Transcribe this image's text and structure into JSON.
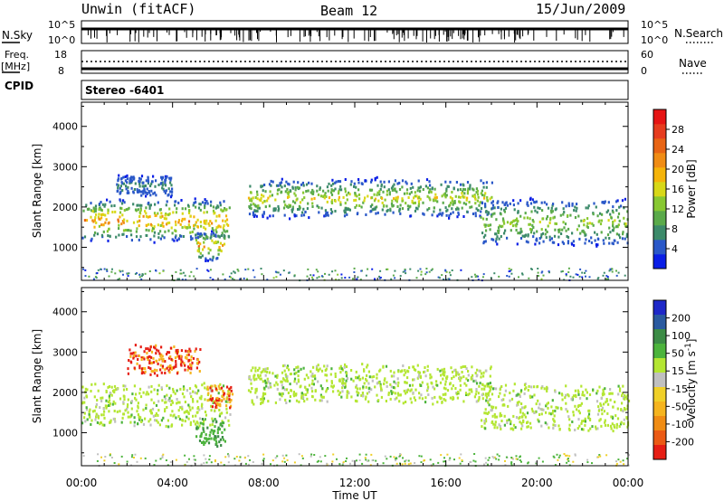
{
  "header": {
    "station": "Unwin (fitACF)",
    "beam": "Beam 12",
    "date": "15/Jun/2009"
  },
  "strips": {
    "nsky_label": "N.Sky",
    "nsky_top": "10^5",
    "nsky_bottom": "10^0",
    "nsearch_label": "N.Search",
    "nsearch_top": "10^5",
    "nsearch_bottom": "10^0",
    "freq_label": "Freq.",
    "freq_unit": "[MHz]",
    "freq_top": "18",
    "freq_bottom": "8",
    "nave_label": "Nave",
    "nave_top": "60",
    "nave_bottom": "0",
    "cpid_label": "CPID",
    "cpid_value": "Stereo -6401"
  },
  "chart_data": [
    {
      "type": "heatmap",
      "panel": "power",
      "ylabel": "Slant Range [km]",
      "y_ticks": [
        1000,
        2000,
        3000,
        4000
      ],
      "ylim": [
        180,
        4600
      ],
      "x_ticks": [
        "00:00",
        "04:00",
        "08:00",
        "12:00",
        "16:00",
        "20:00",
        "00:00"
      ],
      "xlim_hours": [
        0,
        24
      ],
      "colorbar": {
        "label": "Power [dB]",
        "ticks": [
          "4",
          "8",
          "12",
          "16",
          "20",
          "24",
          "28"
        ],
        "colors": [
          "#0a1ee6",
          "#2a58c8",
          "#3c8a6a",
          "#5aaa4a",
          "#88c832",
          "#d8d818",
          "#f5b40a",
          "#f08c14",
          "#e86414",
          "#e63c1e",
          "#e61414"
        ]
      },
      "echo_regions": [
        {
          "t_start": 0.0,
          "t_end": 6.5,
          "r_min": 1200,
          "r_max": 2200,
          "peak_db": 24
        },
        {
          "t_start": 1.5,
          "t_end": 4.0,
          "r_min": 2300,
          "r_max": 2800,
          "peak_db": 8
        },
        {
          "t_start": 5.0,
          "t_end": 6.3,
          "r_min": 700,
          "r_max": 1400,
          "peak_db": 22
        },
        {
          "t_start": 7.3,
          "t_end": 18.0,
          "r_min": 1800,
          "r_max": 2700,
          "peak_db": 18
        },
        {
          "t_start": 17.5,
          "t_end": 24.0,
          "r_min": 1100,
          "r_max": 2200,
          "peak_db": 16
        }
      ]
    },
    {
      "type": "heatmap",
      "panel": "velocity",
      "ylabel": "Slant Range [km]",
      "y_ticks": [
        1000,
        2000,
        3000,
        4000
      ],
      "ylim": [
        180,
        4600
      ],
      "x_ticks": [
        "00:00",
        "04:00",
        "08:00",
        "12:00",
        "16:00",
        "20:00",
        "00:00"
      ],
      "xlim_hours": [
        0,
        24
      ],
      "xlabel": "Time UT",
      "colorbar": {
        "label": "Velocity [m s",
        "label_sup": "-1",
        "label_close": "]",
        "ticks": [
          "200",
          "100",
          "50",
          "15",
          "-15",
          "-50",
          "-100",
          "-200"
        ],
        "colors": [
          "#1e28c8",
          "#2a5aa0",
          "#3c8c46",
          "#4cb43c",
          "#b4e632",
          "#c0c0c0",
          "#f0d028",
          "#f5b41e",
          "#f08c14",
          "#eb5a14",
          "#e61e14"
        ]
      },
      "echo_regions": [
        {
          "t_start": 0.0,
          "t_end": 6.5,
          "r_min": 1200,
          "r_max": 2200,
          "velocity": 0
        },
        {
          "t_start": 2.0,
          "t_end": 5.2,
          "r_min": 2500,
          "r_max": 3200,
          "velocity": -200
        },
        {
          "t_start": 5.5,
          "t_end": 6.6,
          "r_min": 1700,
          "r_max": 2200,
          "velocity": -200
        },
        {
          "t_start": 5.0,
          "t_end": 6.3,
          "r_min": 700,
          "r_max": 1400,
          "velocity": 40
        },
        {
          "t_start": 7.3,
          "t_end": 18.0,
          "r_min": 1800,
          "r_max": 2700,
          "velocity": 0
        },
        {
          "t_start": 17.5,
          "t_end": 24.0,
          "r_min": 1100,
          "r_max": 2200,
          "velocity": 0
        }
      ]
    }
  ]
}
